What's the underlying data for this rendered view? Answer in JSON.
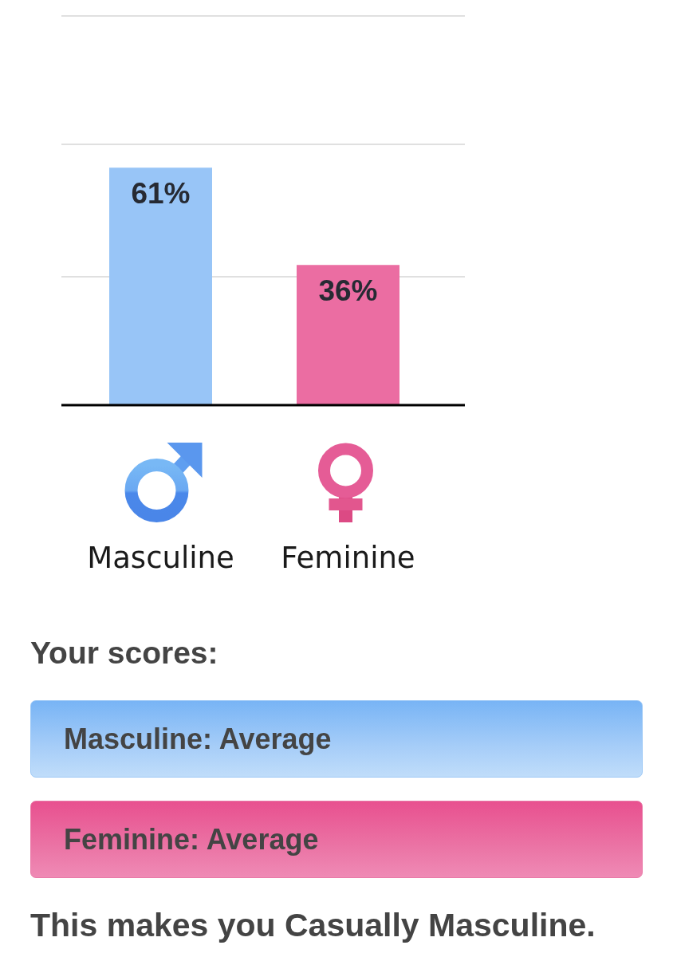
{
  "chart_data": {
    "type": "bar",
    "categories": [
      "Masculine",
      "Feminine"
    ],
    "values": [
      61,
      36
    ],
    "colors": [
      "#98c5f7",
      "#eb6da2"
    ],
    "value_labels": [
      "61%",
      "36%"
    ],
    "ylim": [
      0,
      100
    ],
    "yticks": [
      {
        "value": 33,
        "label": null
      },
      {
        "value": 67,
        "label": null
      },
      {
        "value": 100,
        "label": null
      }
    ],
    "grid": "y",
    "tick_labels": "x",
    "annotations": [
      "Your scores:",
      "Masculine: Average",
      "Feminine: Average",
      "This makes you Casually Masculine."
    ]
  }
}
